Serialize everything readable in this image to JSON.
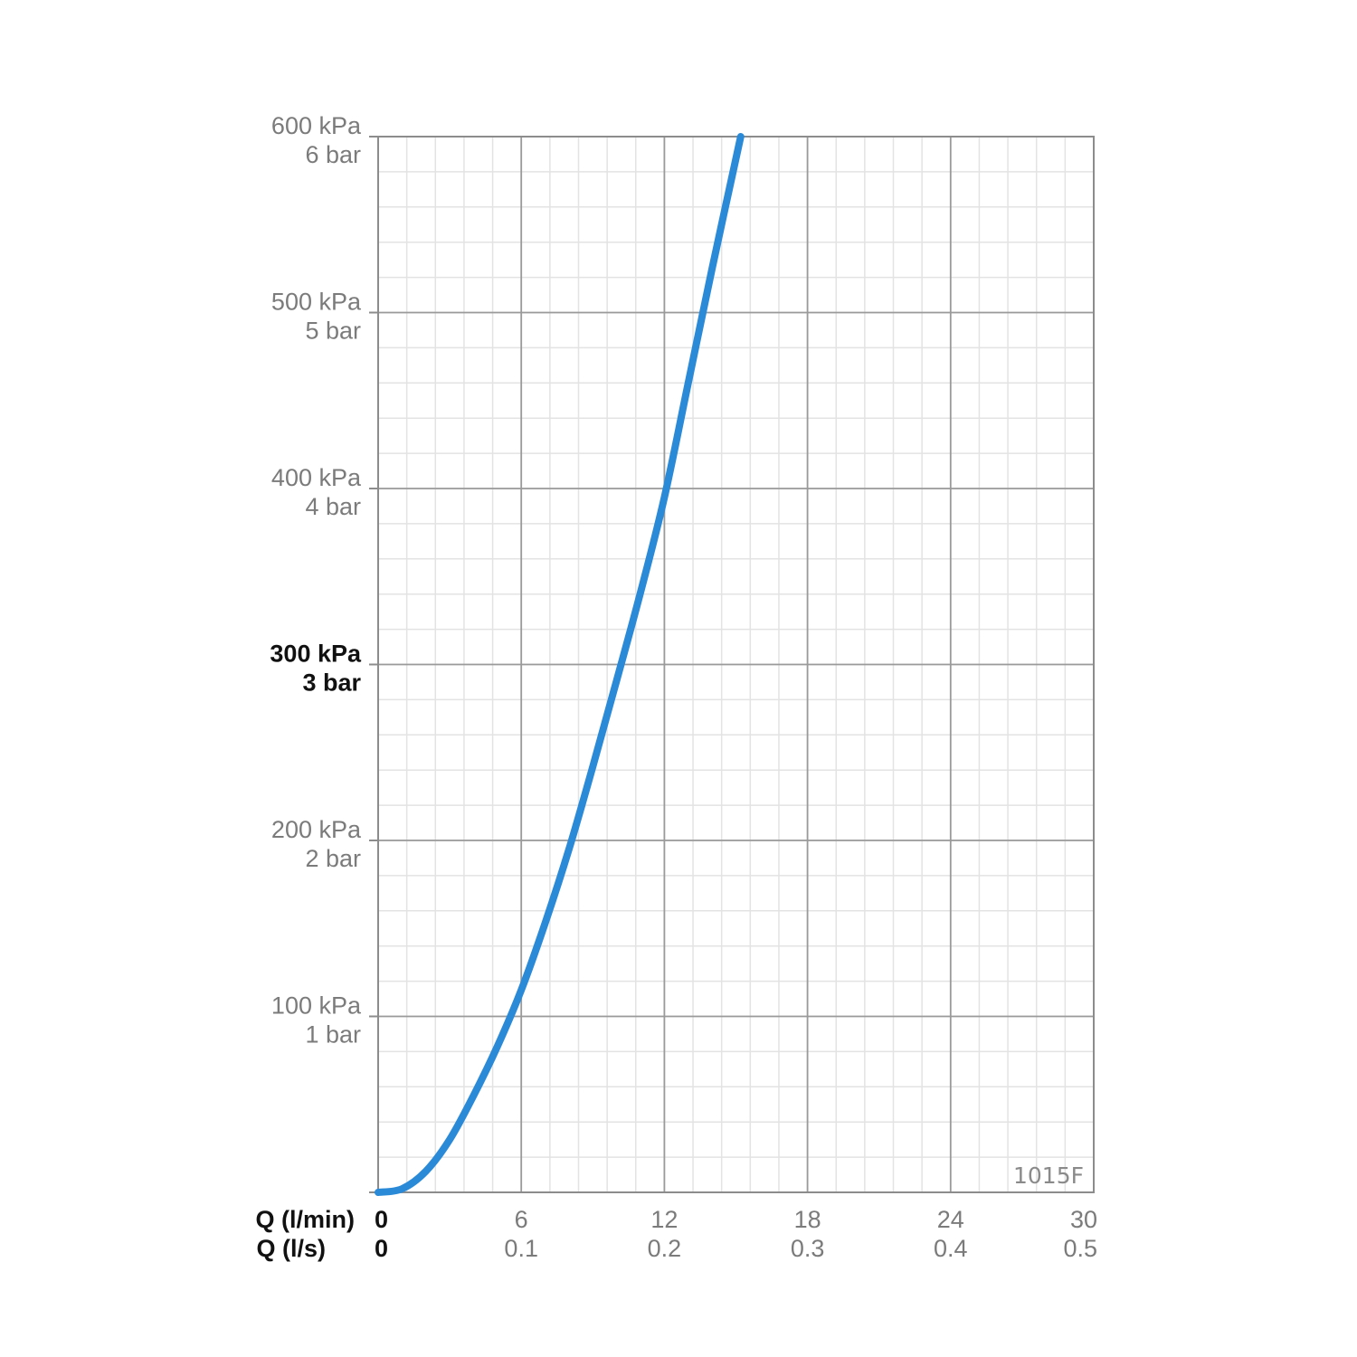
{
  "chart_data": {
    "type": "line",
    "title": "",
    "annotation": "1015F",
    "x_axis_primary": {
      "label": "Q (l/min)",
      "range": [
        0,
        30
      ],
      "ticks": [
        0,
        6,
        12,
        18,
        24,
        30
      ],
      "tick_labels": [
        "0",
        "6",
        "12",
        "18",
        "24",
        "30"
      ]
    },
    "x_axis_secondary": {
      "label": "Q (l/s)",
      "tick_labels": [
        "0",
        "0.1",
        "0.2",
        "0.3",
        "0.4",
        "0.5"
      ]
    },
    "y_axis": {
      "unit": "kPa",
      "range": [
        0,
        600
      ],
      "ticks": [
        100,
        200,
        300,
        400,
        500,
        600
      ],
      "tick_labels_kpa": [
        "100 kPa",
        "200 kPa",
        "300 kPa",
        "400 kPa",
        "500 kPa",
        "600 kPa"
      ],
      "tick_labels_bar": [
        "1 bar",
        "2 bar",
        "3 bar",
        "4 bar",
        "5 bar",
        "6 bar"
      ],
      "highlight_tick": 300
    },
    "grid": true,
    "minor_grid_step_x": 1.2,
    "minor_grid_step_y": 20,
    "colors": {
      "curve": "#2a8ad8",
      "major_grid": "#9a9a9a",
      "minor_grid": "#e3e3e3",
      "labels": "#7b7b7b",
      "bold_labels": "#111111"
    },
    "series": [
      {
        "x": [
          0,
          1,
          2,
          3,
          4,
          5,
          6,
          7,
          8,
          9,
          10,
          11,
          12,
          13,
          14,
          15.2
        ],
        "y": [
          0,
          2,
          12,
          30,
          55,
          83,
          115,
          153,
          195,
          242,
          291,
          341,
          395,
          460,
          525,
          600
        ]
      }
    ]
  }
}
